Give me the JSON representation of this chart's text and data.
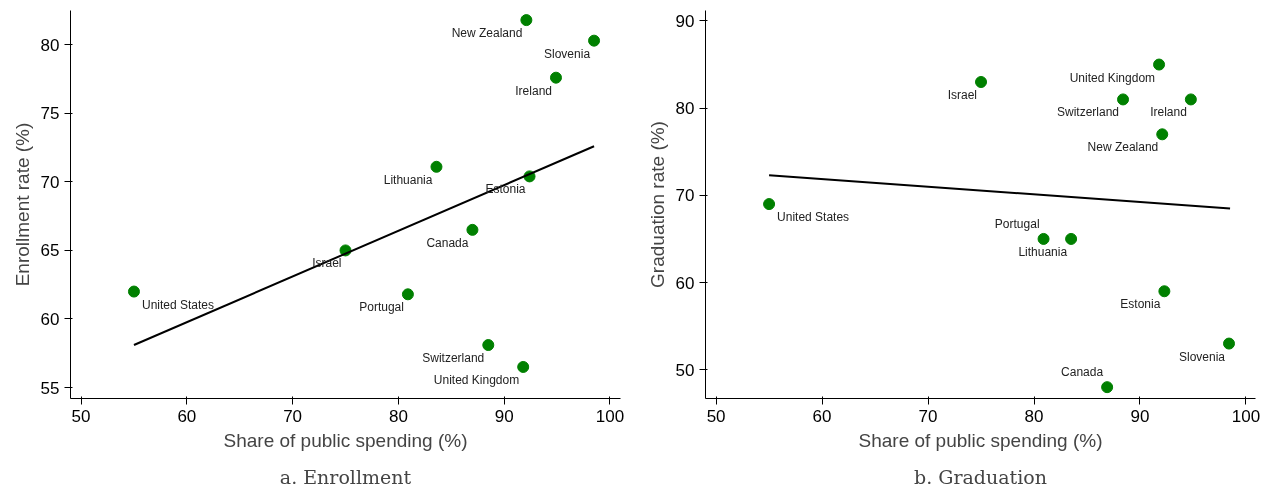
{
  "chart_data": [
    {
      "type": "scatter",
      "title": "a. Enrollment",
      "xlabel": "Share of public spending (%)",
      "ylabel": "Enrollment rate (%)",
      "xlim": [
        49,
        101
      ],
      "ylim": [
        54.2,
        82.5
      ],
      "xticks": [
        50,
        60,
        70,
        80,
        90,
        100
      ],
      "yticks": [
        55,
        60,
        65,
        70,
        75,
        80
      ],
      "grid": false,
      "series": [
        {
          "type": "scatter",
          "color": "#008000",
          "marker": "circle",
          "x": [
            92.1,
            98.5,
            94.9,
            83.6,
            92.4,
            87.0,
            75.0,
            55.0,
            80.9,
            88.5,
            91.8
          ],
          "values": [
            81.8,
            80.3,
            77.6,
            71.1,
            70.4,
            66.5,
            65.0,
            62.0,
            61.8,
            58.1,
            56.5
          ]
        },
        {
          "type": "line",
          "color": "#000000",
          "line_style": "solid",
          "x": [
            55.0,
            98.5
          ],
          "values": [
            58.1,
            72.6
          ]
        }
      ],
      "annotations": [
        {
          "text": "New Zealand",
          "x": 92.1,
          "y": 81.8
        },
        {
          "text": "Slovenia",
          "x": 98.5,
          "y": 80.3
        },
        {
          "text": "Ireland",
          "x": 94.9,
          "y": 77.6
        },
        {
          "text": "Lithuania",
          "x": 83.6,
          "y": 71.1
        },
        {
          "text": "Estonia",
          "x": 92.4,
          "y": 70.4
        },
        {
          "text": "Canada",
          "x": 87.0,
          "y": 66.5
        },
        {
          "text": "Israel",
          "x": 75.0,
          "y": 65.0
        },
        {
          "text": "United States",
          "x": 55.0,
          "y": 62.0
        },
        {
          "text": "Portugal",
          "x": 80.9,
          "y": 61.8
        },
        {
          "text": "Switzerland",
          "x": 88.5,
          "y": 58.1
        },
        {
          "text": "United Kingdom",
          "x": 91.8,
          "y": 56.5
        }
      ]
    },
    {
      "type": "scatter",
      "title": "b. Graduation",
      "xlabel": "Share of public spending (%)",
      "ylabel": "Graduation rate (%)",
      "xlim": [
        49,
        100.9
      ],
      "ylim": [
        46.7,
        91.2
      ],
      "xticks": [
        50,
        60,
        70,
        80,
        90,
        100
      ],
      "yticks": [
        50,
        60,
        70,
        80,
        90
      ],
      "grid": false,
      "series": [
        {
          "type": "scatter",
          "color": "#008000",
          "marker": "circle",
          "x": [
            75.0,
            91.8,
            88.4,
            94.8,
            92.1,
            55.0,
            80.9,
            83.5,
            92.3,
            98.4,
            86.9
          ],
          "values": [
            83.0,
            85.0,
            81.0,
            81.0,
            77.0,
            69.0,
            65.0,
            65.0,
            59.0,
            53.0,
            48.0
          ]
        },
        {
          "type": "line",
          "color": "#000000",
          "line_style": "solid",
          "x": [
            55.0,
            98.5
          ],
          "values": [
            72.3,
            68.5
          ]
        }
      ],
      "annotations": [
        {
          "text": "Israel",
          "x": 75.0,
          "y": 83.0
        },
        {
          "text": "United Kingdom",
          "x": 91.8,
          "y": 85.0
        },
        {
          "text": "Switzerland",
          "x": 88.4,
          "y": 81.0
        },
        {
          "text": "Ireland",
          "x": 94.8,
          "y": 81.0
        },
        {
          "text": "New Zealand",
          "x": 92.1,
          "y": 77.0
        },
        {
          "text": "United States",
          "x": 55.0,
          "y": 69.0
        },
        {
          "text": "Portugal",
          "x": 80.9,
          "y": 65.0
        },
        {
          "text": "Lithuania",
          "x": 83.5,
          "y": 65.0
        },
        {
          "text": "Estonia",
          "x": 92.3,
          "y": 59.0
        },
        {
          "text": "Slovenia",
          "x": 98.4,
          "y": 53.0
        },
        {
          "text": "Canada",
          "x": 86.9,
          "y": 48.0
        }
      ]
    }
  ]
}
